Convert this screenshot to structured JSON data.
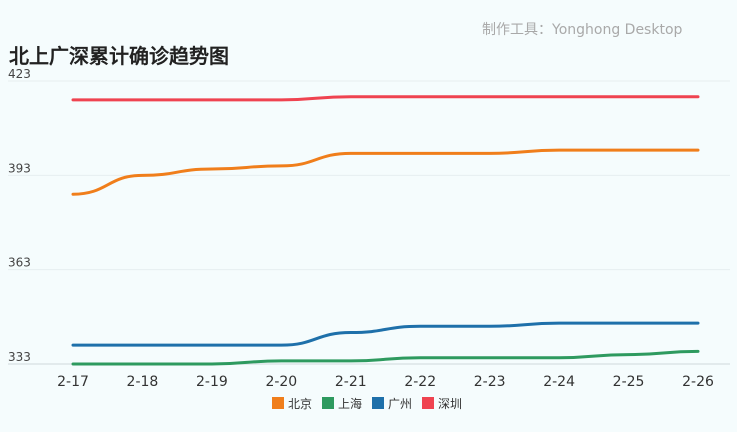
{
  "watermark": "制作工具：Yonghong Desktop",
  "chart_data": {
    "type": "line",
    "title": "北上广深累计确诊趋势图",
    "categories": [
      "2-17",
      "2-18",
      "2-19",
      "2-20",
      "2-21",
      "2-22",
      "2-23",
      "2-24",
      "2-25",
      "2-26"
    ],
    "ylim": [
      333,
      423
    ],
    "yticks": [
      333,
      363,
      393,
      423
    ],
    "grid": true,
    "legend_position": "bottom",
    "series": [
      {
        "name": "北京",
        "color": "#f07e1b",
        "values": [
          387,
          393,
          395,
          396,
          400,
          400,
          400,
          401,
          401,
          401
        ]
      },
      {
        "name": "上海",
        "color": "#2e9a5f",
        "values": [
          333,
          333,
          333,
          334,
          334,
          335,
          335,
          335,
          336,
          337
        ]
      },
      {
        "name": "广州",
        "color": "#1e70aa",
        "values": [
          339,
          339,
          339,
          339,
          343,
          345,
          345,
          346,
          346,
          346
        ]
      },
      {
        "name": "深圳",
        "color": "#ef4350",
        "values": [
          417,
          417,
          417,
          417,
          418,
          418,
          418,
          418,
          418,
          418
        ]
      }
    ]
  }
}
